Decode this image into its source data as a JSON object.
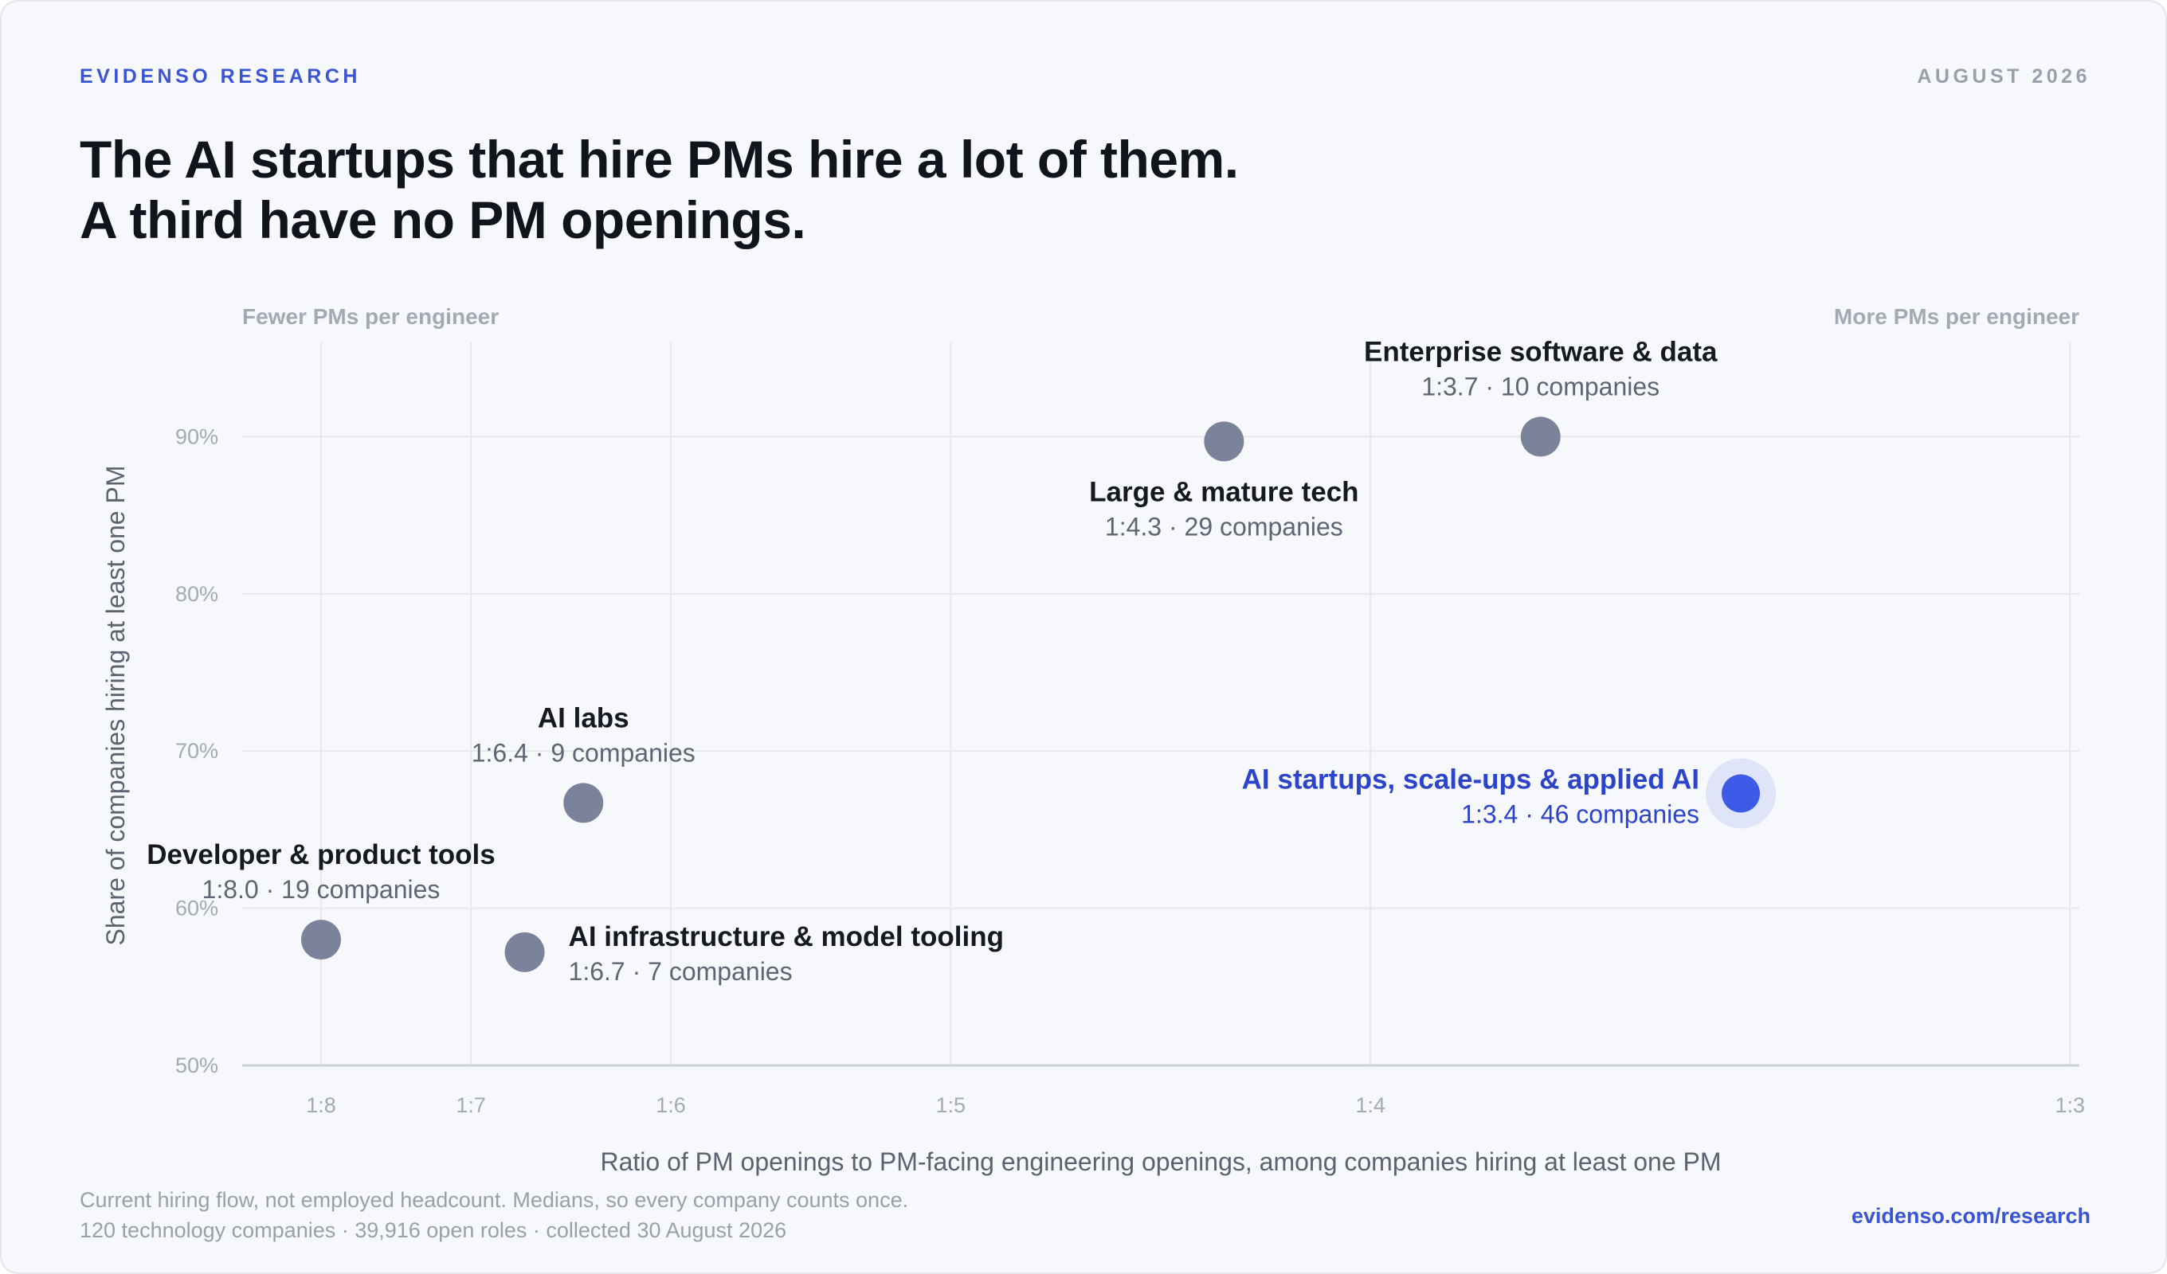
{
  "header": {
    "brand": "EVIDENSO RESEARCH",
    "date": "AUGUST 2026",
    "title_line1": "The AI startups that hire PMs hire a lot of them.",
    "title_line2": "A third have no PM openings."
  },
  "footer": {
    "note_line1": "Current hiring flow, not employed headcount. Medians, so every company counts once.",
    "note_line2": "120 technology companies · 39,916 open roles · collected 30 August 2026",
    "link": "evidenso.com/research"
  },
  "colors": {
    "highlight": "#3d5be6",
    "highlight_text": "#2c44c9",
    "point": "#7a8399",
    "grid": "#e6e8ee",
    "axis_text": "#a4a9b4"
  },
  "chart_data": {
    "type": "scatter",
    "title": "",
    "xlabel": "Ratio of PM openings to PM-facing engineering openings, among companies hiring at least one PM",
    "ylabel": "Share of companies hiring at least one PM",
    "x_note_left": "Fewer PMs per engineer",
    "x_note_right": "More PMs per engineer",
    "x_scale": "reciprocal",
    "x_unit": "engineers per PM",
    "xlim": [
      8.65,
      2.99
    ],
    "x_ticks": [
      8,
      7,
      6,
      5,
      4,
      3
    ],
    "x_tick_labels": [
      "1:8",
      "1:7",
      "1:6",
      "1:5",
      "1:4",
      "1:3"
    ],
    "ylim": [
      50,
      96
    ],
    "y_ticks": [
      50,
      60,
      70,
      80,
      90
    ],
    "y_tick_labels": [
      "50%",
      "60%",
      "70%",
      "80%",
      "90%"
    ],
    "grid": true,
    "points": [
      {
        "name": "Developer & product tools",
        "detail": "1:8.0 · 19 companies",
        "x": 8.0,
        "y": 58,
        "label_pos": "above",
        "highlight": false
      },
      {
        "name": "AI infrastructure & model tooling",
        "detail": "1:6.7 · 7 companies",
        "x": 6.7,
        "y": 57.2,
        "label_pos": "right",
        "highlight": false
      },
      {
        "name": "AI labs",
        "detail": "1:6.4 · 9 companies",
        "x": 6.4,
        "y": 66.7,
        "label_pos": "above",
        "highlight": false
      },
      {
        "name": "Large & mature tech",
        "detail": "1:4.3 · 29 companies",
        "x": 4.3,
        "y": 89.7,
        "label_pos": "below",
        "highlight": false
      },
      {
        "name": "Enterprise software & data",
        "detail": "1:3.7 · 10 companies",
        "x": 3.7,
        "y": 90,
        "label_pos": "above",
        "highlight": false
      },
      {
        "name": "AI startups, scale-ups & applied AI",
        "detail": "1:3.4 · 46 companies",
        "x": 3.4,
        "y": 67.3,
        "label_pos": "left",
        "highlight": true
      }
    ]
  }
}
